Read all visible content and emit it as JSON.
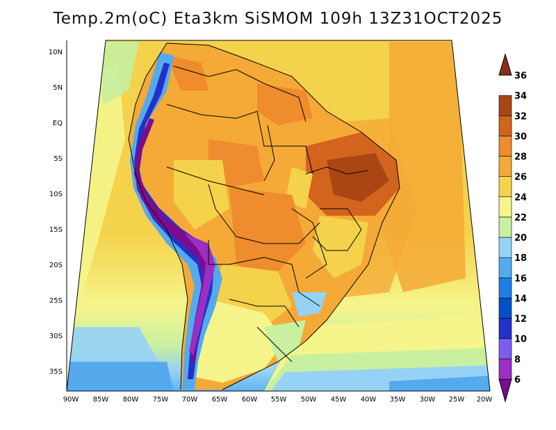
{
  "title": "Temp.2m(oC) Eta3km SiSMOM 109h 13Z31OCT2025",
  "lat_ticks": [
    "10N",
    "5N",
    "EQ",
    "5S",
    "10S",
    "15S",
    "20S",
    "25S",
    "30S",
    "35S"
  ],
  "lon_ticks": [
    "90W",
    "85W",
    "80W",
    "75W",
    "70W",
    "65W",
    "60W",
    "55W",
    "50W",
    "45W",
    "40W",
    "35W",
    "30W",
    "25W",
    "20W"
  ],
  "colorbar": {
    "labels": [
      "6",
      "8",
      "10",
      "12",
      "14",
      "16",
      "18",
      "20",
      "22",
      "24",
      "26",
      "28",
      "30",
      "32",
      "34",
      "36"
    ],
    "colors": [
      "#7a0d8f",
      "#9a2fc2",
      "#7b5cf0",
      "#2232c8",
      "#0050c8",
      "#1f7ee6",
      "#55aaee",
      "#96d2f5",
      "#c8f0a0",
      "#f5f58c",
      "#f5d24b",
      "#f5aa37",
      "#ef8c2d",
      "#d2641e",
      "#aa4614",
      "#823214"
    ]
  }
}
